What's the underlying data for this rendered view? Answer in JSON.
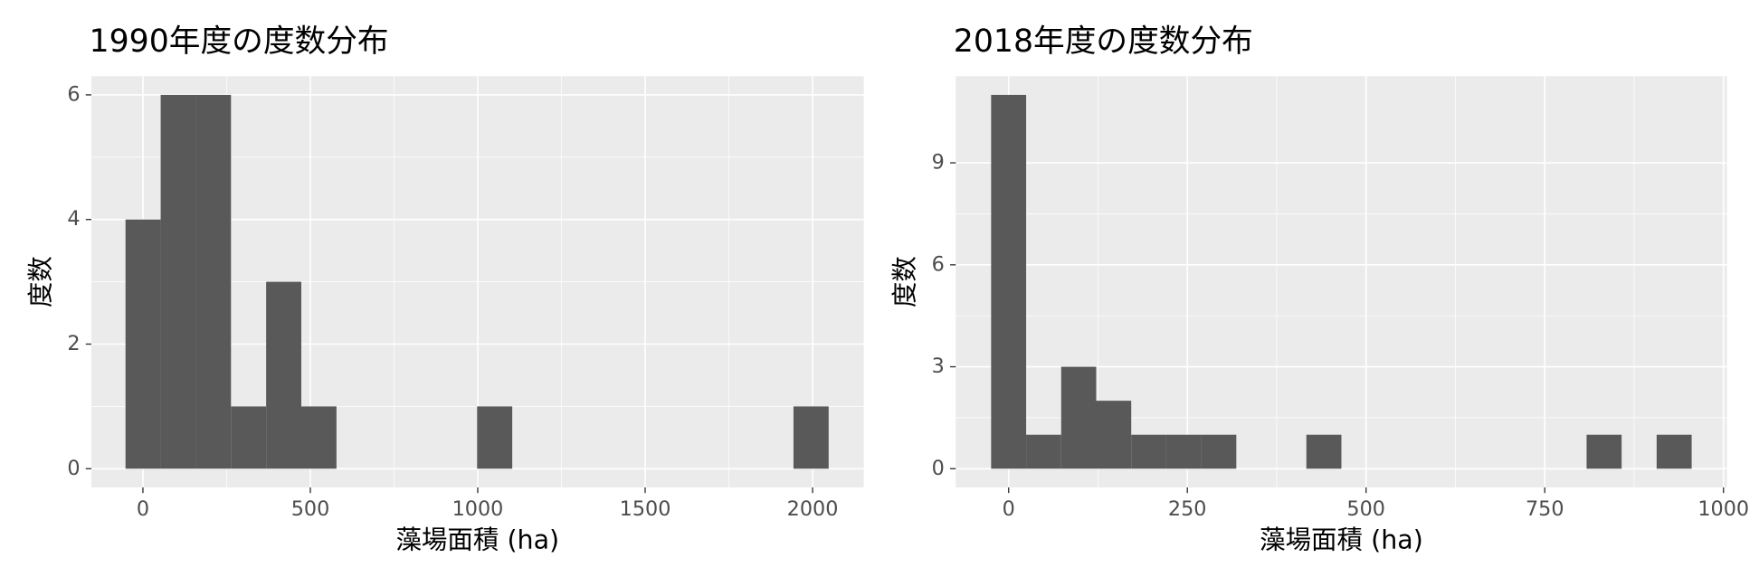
{
  "chart_data": [
    {
      "type": "histogram",
      "title": "1990年度の度数分布",
      "x_label": "藻場面積 (ha)",
      "y_label": "度数",
      "bins": [
        -52,
        53,
        158,
        263,
        368,
        473,
        578,
        683,
        788,
        893,
        998,
        1103,
        1208,
        1313,
        1418,
        1523,
        1628,
        1733,
        1838,
        1943,
        2048
      ],
      "values": [
        4,
        6,
        6,
        1,
        3,
        1,
        0,
        0,
        0,
        0,
        1,
        0,
        0,
        0,
        0,
        0,
        0,
        0,
        0,
        1
      ],
      "color": "#595959",
      "xlim": [
        -154,
        2153
      ],
      "ylim": [
        -0.3,
        6.3
      ],
      "xticks": [
        0,
        500,
        1000,
        1500,
        2000
      ],
      "yticks": [
        0,
        2,
        4,
        6
      ],
      "grid": true
    },
    {
      "type": "histogram",
      "title": "2018年度の度数分布",
      "x_label": "藻場面積 (ha)",
      "y_label": "度数",
      "bins": [
        -24.5,
        24.5,
        73.5,
        122.5,
        171.5,
        220.5,
        269.5,
        318.5,
        367.5,
        416.5,
        465.5,
        514.5,
        563.5,
        612.5,
        661.5,
        710.5,
        759.5,
        808.5,
        857.5,
        906.5,
        955.5
      ],
      "values": [
        11,
        1,
        3,
        2,
        1,
        1,
        1,
        0,
        0,
        1,
        0,
        0,
        0,
        0,
        0,
        0,
        0,
        1,
        0,
        1
      ],
      "color": "#595959",
      "xlim": [
        -74,
        1005
      ],
      "ylim": [
        -0.55,
        11.55
      ],
      "xticks": [
        0,
        250,
        500,
        750,
        1000
      ],
      "yticks": [
        0,
        3,
        6,
        9
      ],
      "grid": true
    }
  ]
}
